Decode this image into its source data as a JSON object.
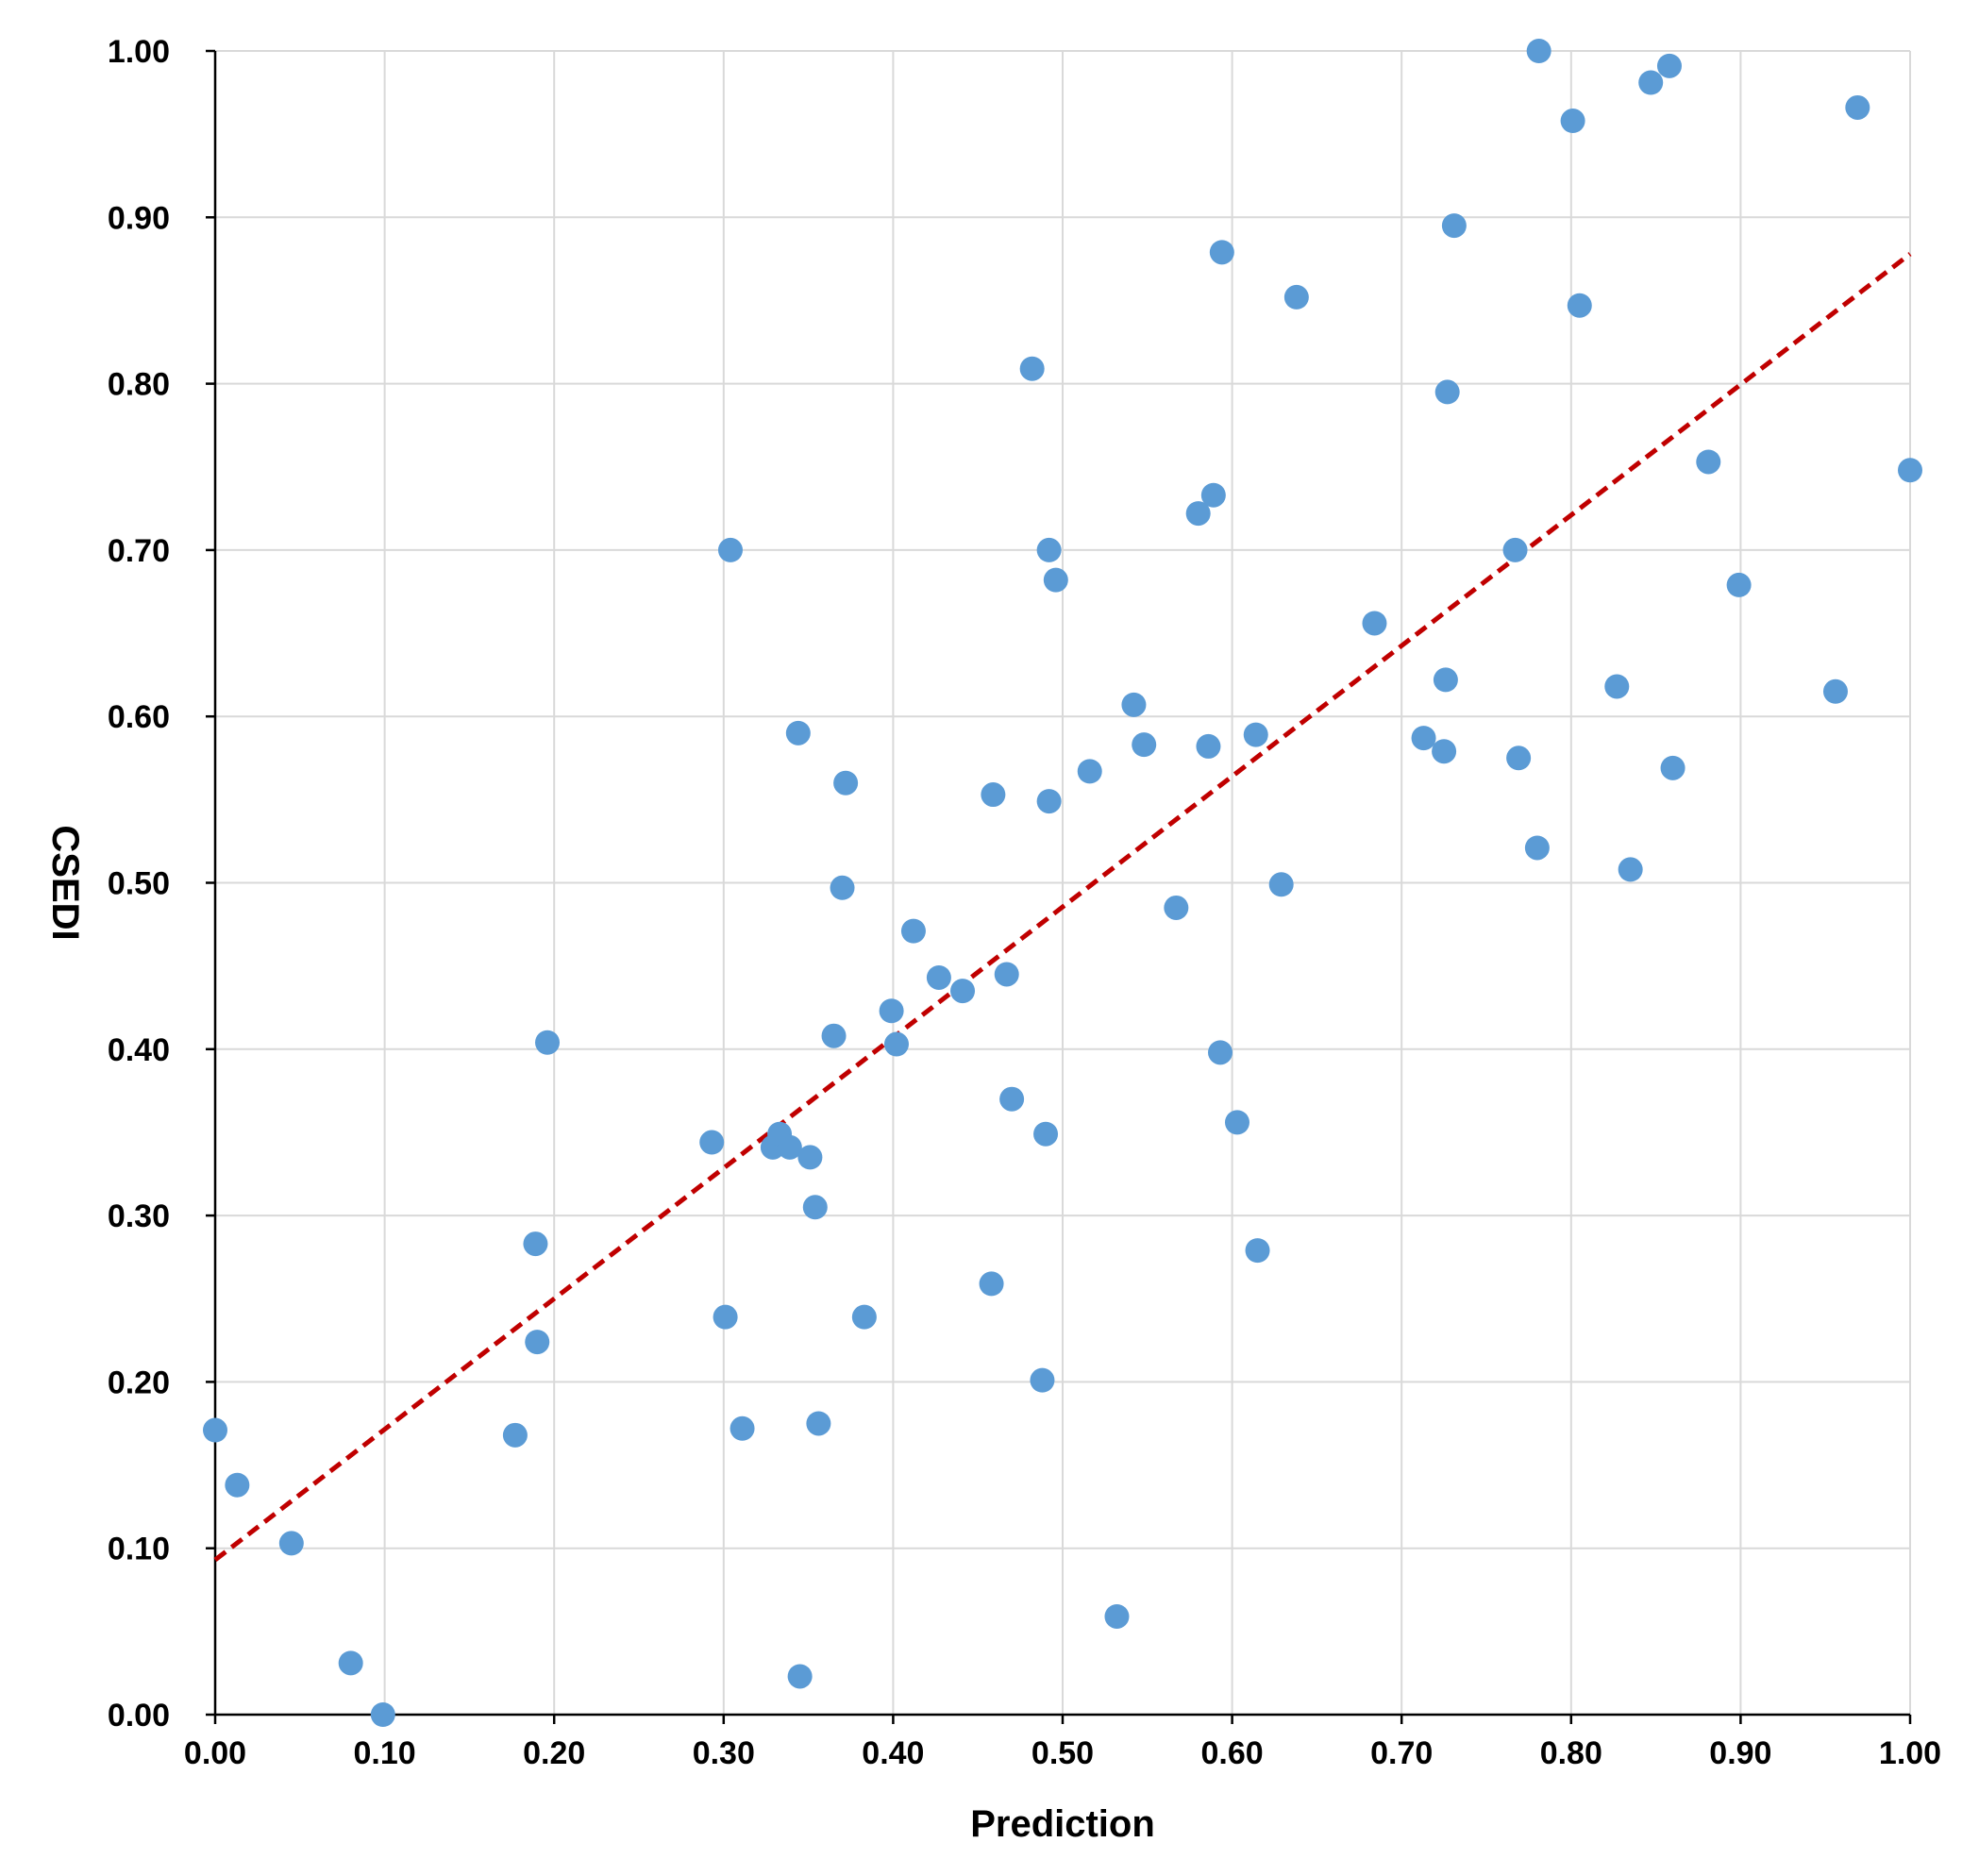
{
  "chart_data": {
    "type": "scatter",
    "title": "",
    "xlabel": "Prediction",
    "ylabel": "CSEDI",
    "xlim": [
      0,
      1
    ],
    "ylim": [
      0,
      1
    ],
    "x_ticks": [
      "0.00",
      "0.10",
      "0.20",
      "0.30",
      "0.40",
      "0.50",
      "0.60",
      "0.70",
      "0.80",
      "0.90",
      "1.00"
    ],
    "y_ticks": [
      "0.00",
      "0.10",
      "0.20",
      "0.30",
      "0.40",
      "0.50",
      "0.60",
      "0.70",
      "0.80",
      "0.90",
      "1.00"
    ],
    "grid": true,
    "legend": "none",
    "colors": {
      "points": "#5b9bd5",
      "trendline": "#c00000"
    },
    "trendline": {
      "style": "dashed",
      "x": [
        0,
        1
      ],
      "y": [
        0.093,
        0.878
      ]
    },
    "series": [
      {
        "points": [
          [
            0.0,
            0.171
          ],
          [
            0.013,
            0.138
          ],
          [
            0.045,
            0.103
          ],
          [
            0.08,
            0.031
          ],
          [
            0.099,
            0.0
          ],
          [
            0.177,
            0.168
          ],
          [
            0.189,
            0.283
          ],
          [
            0.19,
            0.224
          ],
          [
            0.196,
            0.404
          ],
          [
            0.293,
            0.344
          ],
          [
            0.301,
            0.239
          ],
          [
            0.304,
            0.7
          ],
          [
            0.311,
            0.172
          ],
          [
            0.329,
            0.341
          ],
          [
            0.333,
            0.349
          ],
          [
            0.339,
            0.341
          ],
          [
            0.344,
            0.59
          ],
          [
            0.345,
            0.023
          ],
          [
            0.351,
            0.335
          ],
          [
            0.354,
            0.305
          ],
          [
            0.356,
            0.175
          ],
          [
            0.365,
            0.408
          ],
          [
            0.37,
            0.497
          ],
          [
            0.372,
            0.56
          ],
          [
            0.383,
            0.239
          ],
          [
            0.399,
            0.423
          ],
          [
            0.402,
            0.403
          ],
          [
            0.412,
            0.471
          ],
          [
            0.427,
            0.443
          ],
          [
            0.441,
            0.435
          ],
          [
            0.458,
            0.259
          ],
          [
            0.459,
            0.553
          ],
          [
            0.467,
            0.445
          ],
          [
            0.47,
            0.37
          ],
          [
            0.482,
            0.809
          ],
          [
            0.488,
            0.201
          ],
          [
            0.49,
            0.349
          ],
          [
            0.492,
            0.7
          ],
          [
            0.492,
            0.549
          ],
          [
            0.496,
            0.682
          ],
          [
            0.516,
            0.567
          ],
          [
            0.532,
            0.059
          ],
          [
            0.542,
            0.607
          ],
          [
            0.548,
            0.583
          ],
          [
            0.567,
            0.485
          ],
          [
            0.58,
            0.722
          ],
          [
            0.586,
            0.582
          ],
          [
            0.589,
            0.733
          ],
          [
            0.593,
            0.398
          ],
          [
            0.594,
            0.879
          ],
          [
            0.603,
            0.356
          ],
          [
            0.614,
            0.589
          ],
          [
            0.615,
            0.279
          ],
          [
            0.629,
            0.499
          ],
          [
            0.638,
            0.852
          ],
          [
            0.684,
            0.656
          ],
          [
            0.713,
            0.587
          ],
          [
            0.725,
            0.579
          ],
          [
            0.726,
            0.622
          ],
          [
            0.727,
            0.795
          ],
          [
            0.731,
            0.895
          ],
          [
            0.767,
            0.7
          ],
          [
            0.769,
            0.575
          ],
          [
            0.78,
            0.521
          ],
          [
            0.781,
            1.0
          ],
          [
            0.801,
            0.958
          ],
          [
            0.805,
            0.847
          ],
          [
            0.827,
            0.618
          ],
          [
            0.835,
            0.508
          ],
          [
            0.847,
            0.981
          ],
          [
            0.858,
            0.991
          ],
          [
            0.86,
            0.569
          ],
          [
            0.881,
            0.753
          ],
          [
            0.899,
            0.679
          ],
          [
            0.956,
            0.615
          ],
          [
            0.969,
            0.966
          ],
          [
            1.0,
            0.748
          ]
        ]
      }
    ]
  }
}
